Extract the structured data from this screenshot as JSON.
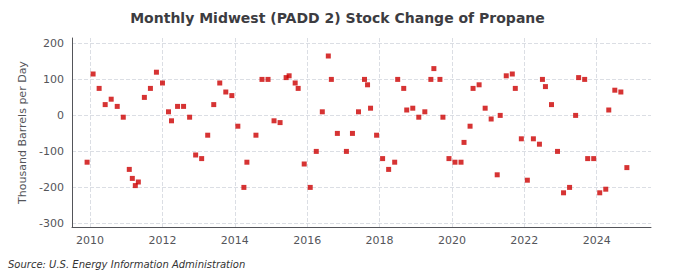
{
  "chart_data": {
    "type": "scatter",
    "title": "Monthly Midwest (PADD 2) Stock Change of Propane",
    "ylabel": "Thousand Barrels per Day",
    "annotation": "Source: U.S. Energy Information Administration",
    "color": "#cc0000",
    "marker": "square",
    "grid": true,
    "xlim": [
      2009.5,
      2025.5
    ],
    "xticks": [
      2010,
      2012,
      2014,
      2016,
      2018,
      2020,
      2022,
      2024
    ],
    "ylim": [
      -310,
      215
    ],
    "yticks": [
      -300,
      -200,
      -100,
      0,
      100,
      200
    ],
    "x": [
      2009.917,
      2010.083,
      2010.25,
      2010.417,
      2010.583,
      2010.75,
      2010.917,
      2011.083,
      2011.167,
      2011.25,
      2011.333,
      2011.5,
      2011.667,
      2011.833,
      2012.0,
      2012.167,
      2012.25,
      2012.417,
      2012.583,
      2012.75,
      2012.917,
      2013.083,
      2013.25,
      2013.417,
      2013.583,
      2013.75,
      2013.917,
      2014.083,
      2014.25,
      2014.333,
      2014.583,
      2014.75,
      2014.917,
      2015.083,
      2015.25,
      2015.417,
      2015.5,
      2015.667,
      2015.75,
      2015.917,
      2016.083,
      2016.25,
      2016.417,
      2016.583,
      2016.667,
      2016.833,
      2017.083,
      2017.25,
      2017.417,
      2017.583,
      2017.667,
      2017.75,
      2017.917,
      2018.083,
      2018.25,
      2018.417,
      2018.5,
      2018.667,
      2018.75,
      2018.917,
      2019.083,
      2019.25,
      2019.417,
      2019.5,
      2019.667,
      2019.75,
      2019.917,
      2020.083,
      2020.25,
      2020.333,
      2020.5,
      2020.583,
      2020.75,
      2020.917,
      2021.083,
      2021.25,
      2021.333,
      2021.5,
      2021.667,
      2021.75,
      2021.917,
      2022.083,
      2022.25,
      2022.417,
      2022.5,
      2022.583,
      2022.75,
      2022.917,
      2023.083,
      2023.25,
      2023.417,
      2023.5,
      2023.667,
      2023.75,
      2023.917,
      2024.083,
      2024.25,
      2024.333,
      2024.5,
      2024.667,
      2024.833
    ],
    "values": [
      -130,
      115,
      75,
      30,
      45,
      25,
      -5,
      -150,
      -175,
      -195,
      -185,
      50,
      75,
      120,
      90,
      10,
      -15,
      25,
      25,
      -5,
      -110,
      -120,
      -55,
      30,
      90,
      65,
      55,
      -30,
      -200,
      -130,
      -55,
      100,
      100,
      -15,
      -20,
      105,
      110,
      90,
      75,
      -135,
      -200,
      -100,
      10,
      165,
      100,
      -50,
      -100,
      -50,
      10,
      100,
      85,
      20,
      -55,
      -120,
      -150,
      -130,
      100,
      75,
      15,
      20,
      -5,
      10,
      100,
      130,
      100,
      -5,
      -120,
      -130,
      -130,
      -75,
      -30,
      75,
      85,
      20,
      -10,
      -165,
      0,
      110,
      115,
      75,
      -65,
      -180,
      -65,
      -80,
      100,
      80,
      30,
      -100,
      -215,
      -200,
      0,
      105,
      100,
      -120,
      -120,
      -215,
      -205,
      15,
      70,
      65,
      -145
    ]
  }
}
